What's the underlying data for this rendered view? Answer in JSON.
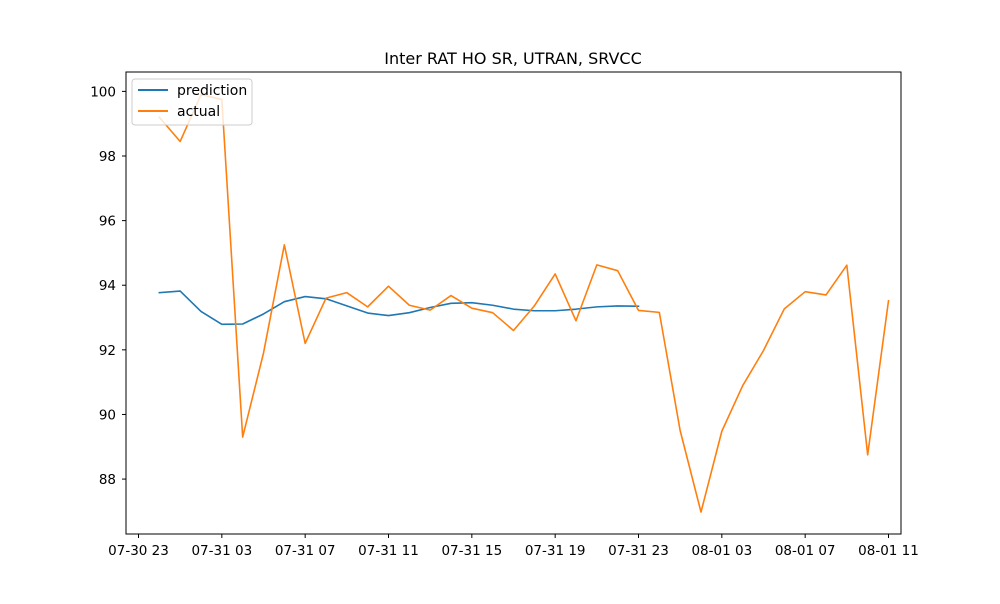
{
  "chart_data": {
    "type": "line",
    "title": "Inter RAT HO SR, UTRAN, SRVCC",
    "xlabel": "",
    "ylabel": "",
    "x_axis": {
      "kind": "time",
      "range": [
        "2023-07-30 22:24",
        "2023-08-01 11:36"
      ],
      "ticks": [
        "07-30 23",
        "07-31 03",
        "07-31 07",
        "07-31 11",
        "07-31 15",
        "07-31 19",
        "07-31 23",
        "08-01 03",
        "08-01 07",
        "08-01 11"
      ]
    },
    "y_axis": {
      "range": [
        86.3,
        100.6
      ],
      "ticks": [
        88,
        90,
        92,
        94,
        96,
        98,
        100
      ]
    },
    "grid": false,
    "legend": {
      "position": "top-left",
      "entries": [
        "prediction",
        "actual"
      ]
    },
    "series": [
      {
        "name": "prediction",
        "color": "#1f77b4",
        "x": [
          "2023-07-31 00:00",
          "2023-07-31 01:00",
          "2023-07-31 02:00",
          "2023-07-31 03:00",
          "2023-07-31 04:00",
          "2023-07-31 05:00",
          "2023-07-31 06:00",
          "2023-07-31 07:00",
          "2023-07-31 08:00",
          "2023-07-31 09:00",
          "2023-07-31 10:00",
          "2023-07-31 11:00",
          "2023-07-31 12:00",
          "2023-07-31 13:00",
          "2023-07-31 14:00",
          "2023-07-31 15:00",
          "2023-07-31 16:00",
          "2023-07-31 17:00",
          "2023-07-31 18:00",
          "2023-07-31 19:00",
          "2023-07-31 20:00",
          "2023-07-31 21:00",
          "2023-07-31 22:00",
          "2023-07-31 23:00"
        ],
        "values": [
          93.77,
          93.82,
          93.19,
          92.79,
          92.8,
          93.11,
          93.49,
          93.65,
          93.58,
          93.36,
          93.14,
          93.06,
          93.15,
          93.31,
          93.44,
          93.46,
          93.38,
          93.26,
          93.21,
          93.21,
          93.26,
          93.33,
          93.36,
          93.35
        ]
      },
      {
        "name": "actual",
        "color": "#ff7f0e",
        "x": [
          "2023-07-31 00:00",
          "2023-07-31 01:00",
          "2023-07-31 02:00",
          "2023-07-31 03:00",
          "2023-07-31 04:00",
          "2023-07-31 05:00",
          "2023-07-31 06:00",
          "2023-07-31 07:00",
          "2023-07-31 08:00",
          "2023-07-31 09:00",
          "2023-07-31 10:00",
          "2023-07-31 11:00",
          "2023-07-31 12:00",
          "2023-07-31 13:00",
          "2023-07-31 14:00",
          "2023-07-31 15:00",
          "2023-07-31 16:00",
          "2023-07-31 17:00",
          "2023-07-31 18:00",
          "2023-07-31 19:00",
          "2023-07-31 20:00",
          "2023-07-31 21:00",
          "2023-07-31 22:00",
          "2023-07-31 23:00",
          "2023-08-01 00:00",
          "2023-08-01 01:00",
          "2023-08-01 02:00",
          "2023-08-01 03:00",
          "2023-08-01 04:00",
          "2023-08-01 05:00",
          "2023-08-01 06:00",
          "2023-08-01 07:00",
          "2023-08-01 08:00",
          "2023-08-01 09:00",
          "2023-08-01 10:00",
          "2023-08-01 11:00"
        ],
        "values": [
          99.2,
          98.45,
          99.9,
          99.75,
          89.3,
          91.9,
          95.25,
          92.2,
          93.6,
          93.77,
          93.33,
          93.97,
          93.38,
          93.23,
          93.68,
          93.29,
          93.15,
          92.6,
          93.36,
          94.35,
          92.9,
          94.63,
          94.45,
          93.22,
          93.16,
          89.5,
          86.98,
          89.48,
          90.89,
          91.98,
          93.27,
          93.8,
          93.7,
          94.62,
          88.75,
          93.52
        ]
      }
    ]
  }
}
